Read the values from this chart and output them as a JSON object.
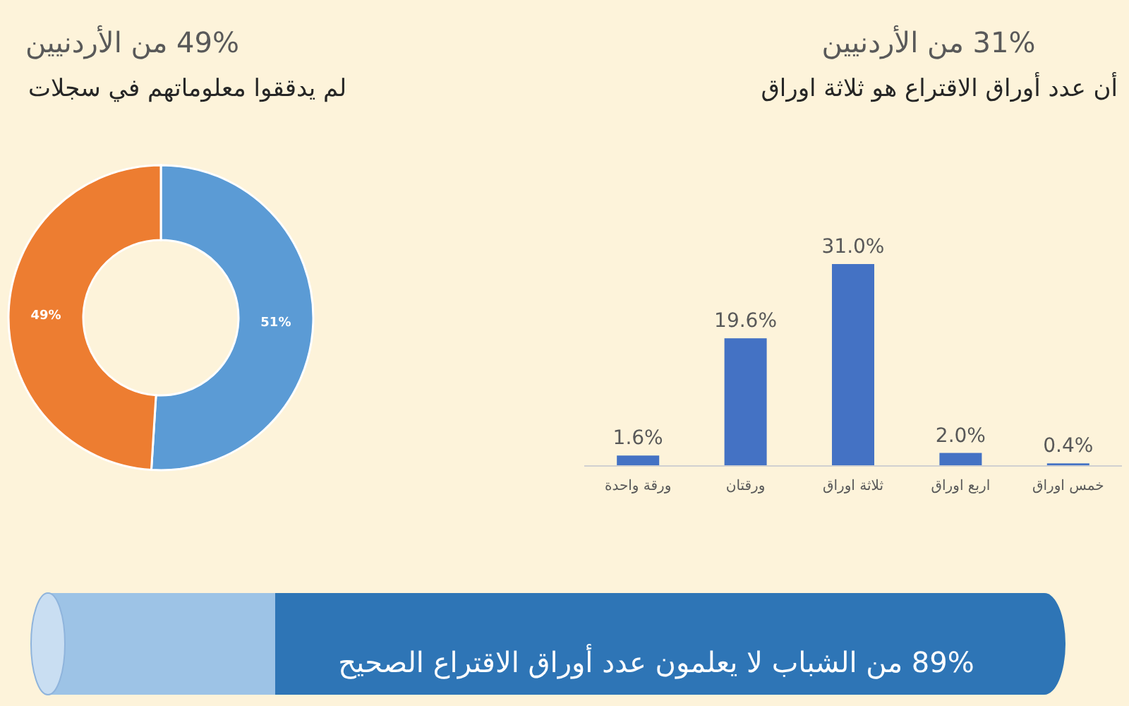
{
  "chart_data": [
    {
      "type": "donut",
      "title": "49% من الأردنيين",
      "subtitle": "لم يدققوا معلوماتهم في سجلات",
      "categories": [
        null,
        null
      ],
      "values": [
        51,
        49
      ],
      "colors": [
        "#5b9bd5",
        "#ed7d31"
      ],
      "value_labels": [
        "51%",
        "49%"
      ]
    },
    {
      "type": "bar",
      "title": "31% من الأردنيين",
      "subtitle": "أن عدد أوراق الاقتراع هو ثلاثة اوراق",
      "categories": [
        "ورقة واحدة",
        "ورقتان",
        "ثلاثة اوراق",
        "اربع اوراق",
        "خمس اوراق"
      ],
      "values": [
        1.6,
        19.6,
        31.0,
        2.0,
        0.4
      ],
      "color": "#4472c4",
      "value_labels": [
        "1.6%",
        "19.6%",
        "31.0%",
        "2.0%",
        "0.4%"
      ]
    },
    {
      "type": "other",
      "title": "89% من الشباب لا يعلمون عدد أوراق الاقتراع الصحيح"
    }
  ]
}
